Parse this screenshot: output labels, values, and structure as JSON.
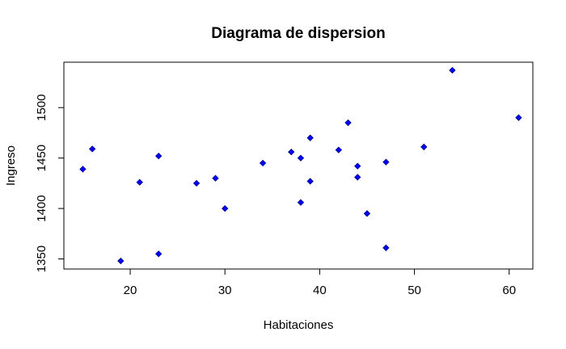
{
  "chart_data": {
    "type": "scatter",
    "title": "Diagrama de dispersion",
    "xlabel": "Habitaciones",
    "ylabel": "Ingreso",
    "xlim": [
      13,
      62.5
    ],
    "ylim": [
      1340,
      1545
    ],
    "xticks": [
      20,
      30,
      40,
      50,
      60
    ],
    "yticks": [
      1350,
      1400,
      1450,
      1500
    ],
    "grid": false,
    "marker": "diamond",
    "point_color": "#0000ff",
    "point_edge_color": "#000080",
    "points": [
      {
        "x": 15,
        "y": 1439
      },
      {
        "x": 16,
        "y": 1459
      },
      {
        "x": 19,
        "y": 1348
      },
      {
        "x": 21,
        "y": 1426
      },
      {
        "x": 23,
        "y": 1452
      },
      {
        "x": 23,
        "y": 1355
      },
      {
        "x": 27,
        "y": 1425
      },
      {
        "x": 29,
        "y": 1430
      },
      {
        "x": 30,
        "y": 1400
      },
      {
        "x": 34,
        "y": 1445
      },
      {
        "x": 37,
        "y": 1456
      },
      {
        "x": 38,
        "y": 1450
      },
      {
        "x": 38,
        "y": 1406
      },
      {
        "x": 39,
        "y": 1470
      },
      {
        "x": 39,
        "y": 1427
      },
      {
        "x": 42,
        "y": 1458
      },
      {
        "x": 43,
        "y": 1485
      },
      {
        "x": 44,
        "y": 1442
      },
      {
        "x": 44,
        "y": 1431
      },
      {
        "x": 45,
        "y": 1395
      },
      {
        "x": 47,
        "y": 1446
      },
      {
        "x": 47,
        "y": 1361
      },
      {
        "x": 51,
        "y": 1461
      },
      {
        "x": 54,
        "y": 1537
      },
      {
        "x": 61,
        "y": 1490
      }
    ]
  }
}
